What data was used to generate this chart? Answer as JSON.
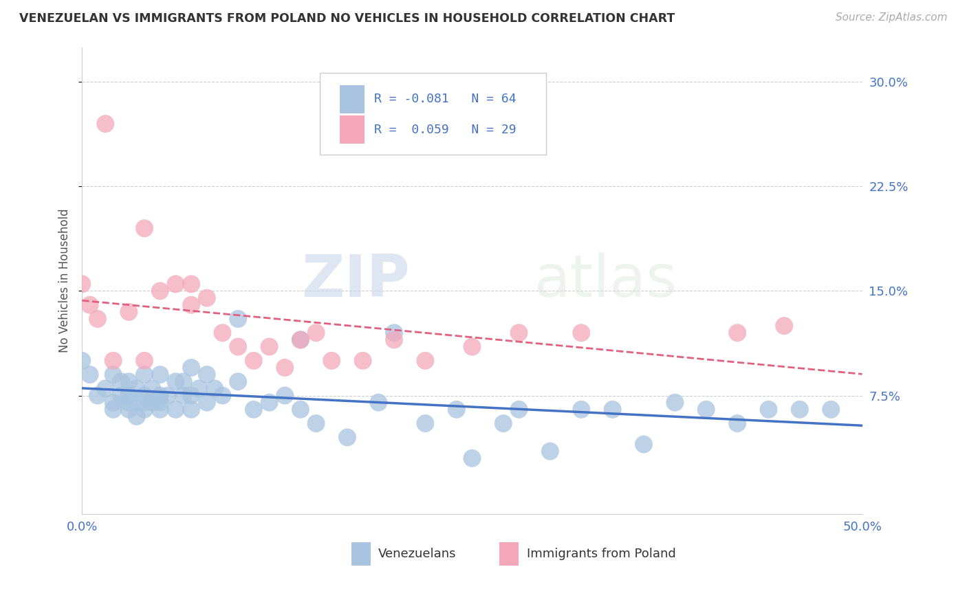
{
  "title": "VENEZUELAN VS IMMIGRANTS FROM POLAND NO VEHICLES IN HOUSEHOLD CORRELATION CHART",
  "source": "Source: ZipAtlas.com",
  "ylabel": "No Vehicles in Household",
  "xlim": [
    0.0,
    0.5
  ],
  "ylim": [
    -0.01,
    0.325
  ],
  "yticks": [
    0.075,
    0.15,
    0.225,
    0.3
  ],
  "ytick_labels": [
    "7.5%",
    "15.0%",
    "22.5%",
    "30.0%"
  ],
  "xticks": [
    0.0,
    0.1,
    0.2,
    0.3,
    0.4,
    0.5
  ],
  "xtick_labels": [
    "0.0%",
    "",
    "",
    "",
    "",
    "50.0%"
  ],
  "venezuelan_R": -0.081,
  "venezuelan_N": 64,
  "poland_R": 0.059,
  "poland_N": 29,
  "venezuelan_color": "#a8c4e0",
  "poland_color": "#f4a7b9",
  "venezuelan_line_color": "#4472c4",
  "poland_line_color": "#e06080",
  "watermark_zip": "ZIP",
  "watermark_atlas": "atlas",
  "legend_label_1": "Venezuelans",
  "legend_label_2": "Immigrants from Poland",
  "venezuelan_x": [
    0.0,
    0.005,
    0.01,
    0.015,
    0.02,
    0.02,
    0.02,
    0.025,
    0.025,
    0.03,
    0.03,
    0.03,
    0.03,
    0.035,
    0.035,
    0.04,
    0.04,
    0.04,
    0.04,
    0.045,
    0.045,
    0.05,
    0.05,
    0.05,
    0.05,
    0.055,
    0.06,
    0.06,
    0.065,
    0.065,
    0.07,
    0.07,
    0.07,
    0.075,
    0.08,
    0.08,
    0.085,
    0.09,
    0.1,
    0.1,
    0.11,
    0.12,
    0.13,
    0.14,
    0.14,
    0.15,
    0.17,
    0.19,
    0.2,
    0.22,
    0.24,
    0.25,
    0.27,
    0.28,
    0.3,
    0.32,
    0.34,
    0.36,
    0.38,
    0.4,
    0.42,
    0.44,
    0.46,
    0.48
  ],
  "venezuelan_y": [
    0.1,
    0.09,
    0.075,
    0.08,
    0.065,
    0.07,
    0.09,
    0.075,
    0.085,
    0.065,
    0.07,
    0.075,
    0.085,
    0.06,
    0.08,
    0.065,
    0.07,
    0.075,
    0.09,
    0.07,
    0.08,
    0.065,
    0.07,
    0.075,
    0.09,
    0.075,
    0.065,
    0.085,
    0.075,
    0.085,
    0.065,
    0.075,
    0.095,
    0.08,
    0.07,
    0.09,
    0.08,
    0.075,
    0.085,
    0.13,
    0.065,
    0.07,
    0.075,
    0.065,
    0.115,
    0.055,
    0.045,
    0.07,
    0.12,
    0.055,
    0.065,
    0.03,
    0.055,
    0.065,
    0.035,
    0.065,
    0.065,
    0.04,
    0.07,
    0.065,
    0.055,
    0.065,
    0.065,
    0.065
  ],
  "poland_x": [
    0.0,
    0.005,
    0.01,
    0.015,
    0.02,
    0.03,
    0.04,
    0.04,
    0.05,
    0.06,
    0.07,
    0.07,
    0.08,
    0.09,
    0.1,
    0.11,
    0.12,
    0.13,
    0.14,
    0.15,
    0.16,
    0.18,
    0.2,
    0.22,
    0.25,
    0.28,
    0.32,
    0.42,
    0.45
  ],
  "poland_y": [
    0.155,
    0.14,
    0.13,
    0.27,
    0.1,
    0.135,
    0.1,
    0.195,
    0.15,
    0.155,
    0.14,
    0.155,
    0.145,
    0.12,
    0.11,
    0.1,
    0.11,
    0.095,
    0.115,
    0.12,
    0.1,
    0.1,
    0.115,
    0.1,
    0.11,
    0.12,
    0.12,
    0.12,
    0.125
  ]
}
